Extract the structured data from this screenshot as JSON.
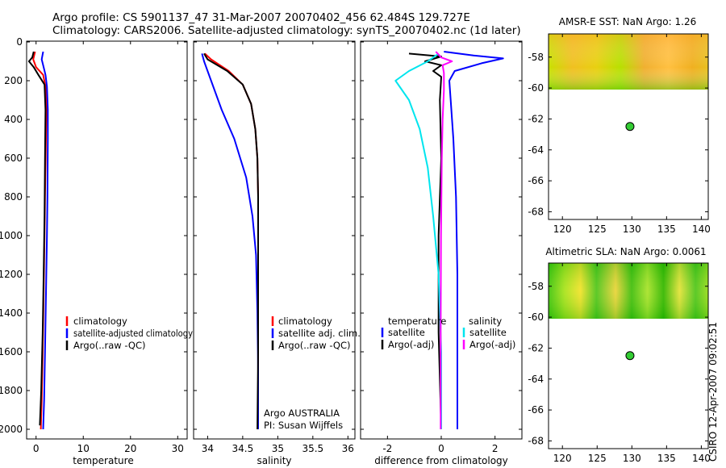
{
  "header": {
    "line1": "Argo profile: CS 5901137_47 31-Mar-2007 20070402_456 62.484S 129.727E",
    "line2": "Climatology: CARS2006. Satellite-adjusted climatology: synTS_20070402.nc (1d later)"
  },
  "credit": "CSIRO 12-Apr-2007 09:02:51",
  "colors": {
    "climatology": "#ff0000",
    "satellite": "#0000ff",
    "argo": "#000000",
    "sat_salinity": "#00e5ee",
    "argo_salinity": "#ff00ff",
    "float": "#33cc33"
  },
  "chart_data": [
    {
      "id": "temp",
      "type": "line",
      "xlabel": "temperature",
      "ylabel": "",
      "xlim": [
        -2,
        32
      ],
      "ylim": [
        2050,
        0
      ],
      "y_reversed": true,
      "xticks": [
        "0",
        "10",
        "20",
        "30"
      ],
      "xtick_values": [
        0,
        10,
        20,
        30
      ],
      "yticks": [
        "0",
        "200",
        "400",
        "600",
        "800",
        "1000",
        "1200",
        "1400",
        "1600",
        "1800",
        "2000"
      ],
      "ytick_values": [
        0,
        200,
        400,
        600,
        800,
        1000,
        1200,
        1400,
        1600,
        1800,
        2000
      ],
      "legend": [
        "climatology",
        "satellite-adjusted climatology",
        "Argo(..raw -QC)"
      ],
      "series": [
        {
          "name": "climatology",
          "color": "#ff0000",
          "x": [
            -0.2,
            -0.6,
            0.0,
            1.5,
            2.0,
            2.2,
            2.1,
            1.9,
            1.8,
            1.6,
            1.4,
            1.2,
            1.0
          ],
          "y": [
            50,
            90,
            130,
            170,
            230,
            350,
            500,
            800,
            1000,
            1300,
            1600,
            1850,
            2000
          ]
        },
        {
          "name": "satellite-adjusted climatology",
          "color": "#0000ff",
          "x": [
            1.5,
            1.2,
            1.6,
            2.0,
            2.3,
            2.5,
            2.5,
            2.4,
            2.3,
            2.1,
            1.9,
            1.7,
            1.5
          ],
          "y": [
            50,
            90,
            130,
            170,
            230,
            350,
            500,
            800,
            1000,
            1300,
            1600,
            1850,
            2000
          ]
        },
        {
          "name": "Argo(..raw -QC)",
          "color": "#000000",
          "x": [
            -0.5,
            -0.8,
            -1.5,
            -0.5,
            0.5,
            1.8,
            2.0,
            1.9,
            1.8,
            1.6,
            1.4,
            1.1,
            0.8
          ],
          "y": [
            50,
            80,
            100,
            130,
            170,
            220,
            350,
            600,
            900,
            1200,
            1500,
            1800,
            1980
          ]
        }
      ]
    },
    {
      "id": "sal",
      "type": "line",
      "xlabel": "salinity",
      "ylabel": "",
      "xlim": [
        33.8,
        36.1
      ],
      "ylim": [
        2050,
        0
      ],
      "y_reversed": true,
      "xticks": [
        "34",
        "34.5",
        "35",
        "35.5",
        "36"
      ],
      "xtick_values": [
        34,
        34.5,
        35,
        35.5,
        36
      ],
      "legend": [
        "climatology",
        "satellite adj. clim.",
        "Argo(..raw -QC)"
      ],
      "annotation": [
        "Argo AUSTRALIA",
        "PI: Susan Wijffels"
      ],
      "series": [
        {
          "name": "climatology",
          "color": "#ff0000",
          "x": [
            33.96,
            34.05,
            34.3,
            34.5,
            34.62,
            34.68,
            34.71,
            34.72,
            34.72,
            34.72,
            34.72
          ],
          "y": [
            60,
            90,
            150,
            220,
            320,
            450,
            600,
            800,
            1200,
            1600,
            2000
          ]
        },
        {
          "name": "satellite adj. clim.",
          "color": "#0000ff",
          "x": [
            33.92,
            33.95,
            34.05,
            34.2,
            34.38,
            34.55,
            34.64,
            34.69,
            34.71,
            34.72,
            34.72
          ],
          "y": [
            60,
            100,
            200,
            350,
            500,
            700,
            900,
            1100,
            1400,
            1700,
            2000
          ]
        },
        {
          "name": "Argo(..raw -QC)",
          "color": "#000000",
          "x": [
            33.95,
            34.0,
            34.28,
            34.5,
            34.62,
            34.68,
            34.71,
            34.72,
            34.72,
            34.72,
            34.71
          ],
          "y": [
            60,
            90,
            150,
            220,
            320,
            450,
            600,
            800,
            1200,
            1600,
            2000
          ]
        }
      ]
    },
    {
      "id": "diff",
      "type": "line",
      "xlabel": "difference from climatology",
      "ylabel": "",
      "xlim": [
        -3,
        3
      ],
      "ylim": [
        2050,
        0
      ],
      "y_reversed": true,
      "xticks": [
        "-2",
        "0",
        "2"
      ],
      "xtick_values": [
        -2,
        0,
        2
      ],
      "legend_headers": [
        "temperature",
        "salinity"
      ],
      "legend": [
        "satellite",
        "Argo(-adj)",
        "satellite",
        "Argo(-adj)"
      ],
      "series": [
        {
          "name": "temperature satellite",
          "color": "#0000ff",
          "x": [
            0.1,
            1.2,
            2.3,
            1.5,
            0.5,
            0.3,
            0.35,
            0.45,
            0.55,
            0.6,
            0.6
          ],
          "y": [
            50,
            70,
            85,
            110,
            150,
            200,
            300,
            500,
            800,
            1200,
            2000
          ]
        },
        {
          "name": "temperature Argo(-adj)",
          "color": "#000000",
          "x": [
            -1.2,
            0.0,
            -0.6,
            0.0,
            -0.3,
            0.0,
            -0.05,
            0.0,
            -0.1,
            -0.1,
            0.0
          ],
          "y": [
            60,
            75,
            100,
            120,
            150,
            180,
            300,
            600,
            1000,
            1500,
            2000
          ]
        },
        {
          "name": "salinity satellite",
          "color": "#00e5ee",
          "x": [
            -0.1,
            -0.5,
            -1.2,
            -1.7,
            -1.2,
            -0.8,
            -0.5,
            -0.3,
            -0.1,
            0.0,
            0.0
          ],
          "y": [
            60,
            100,
            150,
            200,
            300,
            450,
            650,
            900,
            1200,
            1600,
            2000
          ]
        },
        {
          "name": "salinity Argo(-adj)",
          "color": "#ff00ff",
          "x": [
            -0.2,
            0.0,
            0.4,
            0.05,
            0.1,
            0.1,
            0.05,
            0.02,
            -0.01,
            -0.02,
            -0.02
          ],
          "y": [
            50,
            80,
            100,
            120,
            160,
            250,
            400,
            600,
            1000,
            1500,
            2000
          ]
        }
      ]
    },
    {
      "id": "sst_map",
      "type": "heatmap",
      "title": "AMSR-E SST: NaN Argo: 1.26",
      "xlim": [
        118,
        141
      ],
      "ylim": [
        -68.5,
        -56.5
      ],
      "xticks": [
        "120",
        "125",
        "130",
        "135",
        "140"
      ],
      "xtick_values": [
        120,
        125,
        130,
        135,
        140
      ],
      "yticks": [
        "-58",
        "-60",
        "-62",
        "-64",
        "-66",
        "-68"
      ],
      "ytick_values": [
        -58,
        -60,
        -62,
        -64,
        -66,
        -68
      ],
      "data_lat_range": [
        -60.2,
        -56.5
      ],
      "float_position": {
        "lon": 129.727,
        "lat": -62.484
      }
    },
    {
      "id": "sla_map",
      "type": "heatmap",
      "title": "Altimetric SLA: NaN Argo: 0.0061",
      "xlim": [
        118,
        141
      ],
      "ylim": [
        -68.5,
        -56.5
      ],
      "xticks": [
        "120",
        "125",
        "130",
        "135",
        "140"
      ],
      "xtick_values": [
        120,
        125,
        130,
        135,
        140
      ],
      "yticks": [
        "-58",
        "-60",
        "-62",
        "-64",
        "-66",
        "-68"
      ],
      "ytick_values": [
        -58,
        -60,
        -62,
        -64,
        -66,
        -68
      ],
      "data_lat_range": [
        -60.2,
        -56.5
      ],
      "float_position": {
        "lon": 129.727,
        "lat": -62.484
      }
    }
  ]
}
